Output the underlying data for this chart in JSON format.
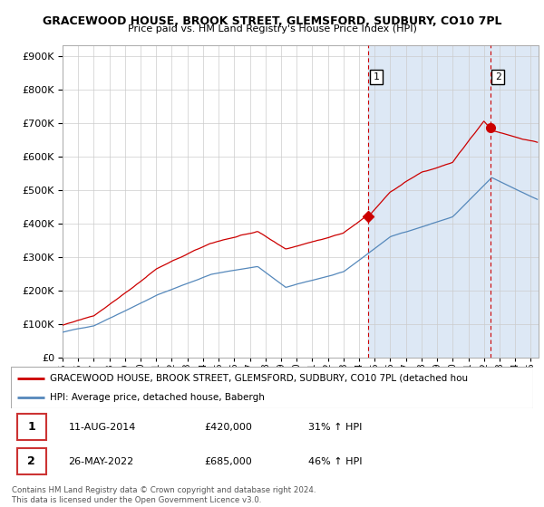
{
  "title": "GRACEWOOD HOUSE, BROOK STREET, GLEMSFORD, SUDBURY, CO10 7PL",
  "subtitle": "Price paid vs. HM Land Registry's House Price Index (HPI)",
  "ylim": [
    0,
    900000
  ],
  "xlim_start": 1995.0,
  "xlim_end": 2025.5,
  "red_line_label": "GRACEWOOD HOUSE, BROOK STREET, GLEMSFORD, SUDBURY, CO10 7PL (detached hou",
  "blue_line_label": "HPI: Average price, detached house, Babergh",
  "transaction1_date": "11-AUG-2014",
  "transaction1_price": "£420,000",
  "transaction1_hpi": "31% ↑ HPI",
  "transaction1_year": 2014.6,
  "transaction1_value": 420000,
  "transaction2_date": "26-MAY-2022",
  "transaction2_price": "£685,000",
  "transaction2_hpi": "46% ↑ HPI",
  "transaction2_year": 2022.4,
  "transaction2_value": 685000,
  "copyright_text": "Contains HM Land Registry data © Crown copyright and database right 2024.\nThis data is licensed under the Open Government Licence v3.0.",
  "background_color": "#ffffff",
  "grid_color": "#cccccc",
  "red_color": "#cc0000",
  "blue_color": "#5588bb",
  "shade_color": "#dde8f5"
}
